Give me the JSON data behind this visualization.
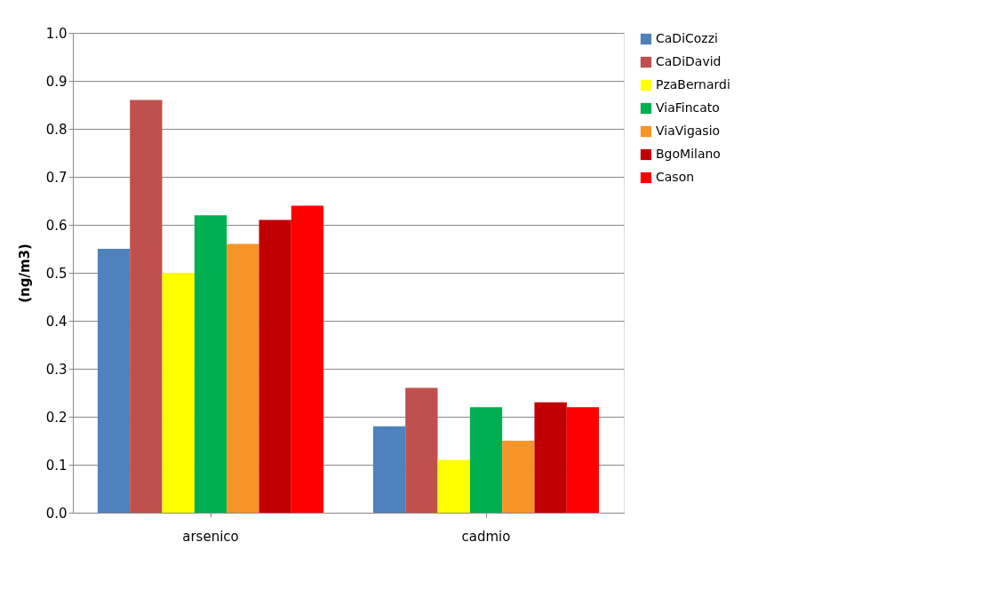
{
  "chart_data": {
    "type": "bar",
    "ylabel": "(ng/m3)",
    "categories": [
      "arsenico",
      "cadmio"
    ],
    "series": [
      {
        "name": "CaDiCozzi",
        "color": "#4f81bd",
        "values": [
          0.55,
          0.18
        ]
      },
      {
        "name": "CaDiDavid",
        "color": "#c0504d",
        "values": [
          0.86,
          0.26
        ]
      },
      {
        "name": "PzaBernardi",
        "color": "#ffff00",
        "values": [
          0.5,
          0.11
        ]
      },
      {
        "name": "ViaFincato",
        "color": "#00b050",
        "values": [
          0.62,
          0.22
        ]
      },
      {
        "name": "ViaVigasio",
        "color": "#f79427",
        "values": [
          0.56,
          0.15
        ]
      },
      {
        "name": "BgoMilano",
        "color": "#c00000",
        "values": [
          0.61,
          0.23
        ]
      },
      {
        "name": "Cason",
        "color": "#ff0000",
        "values": [
          0.64,
          0.22
        ]
      }
    ],
    "ylim": [
      0,
      1.0
    ],
    "yticks": [
      {
        "value": 0,
        "label": "0.0"
      },
      0.1,
      0.2,
      0.3,
      0.4,
      0.5,
      0.6,
      0.7,
      0.8,
      0.9,
      {
        "value": 1,
        "label": "1.0"
      }
    ],
    "grid": "y",
    "legend": "right"
  }
}
